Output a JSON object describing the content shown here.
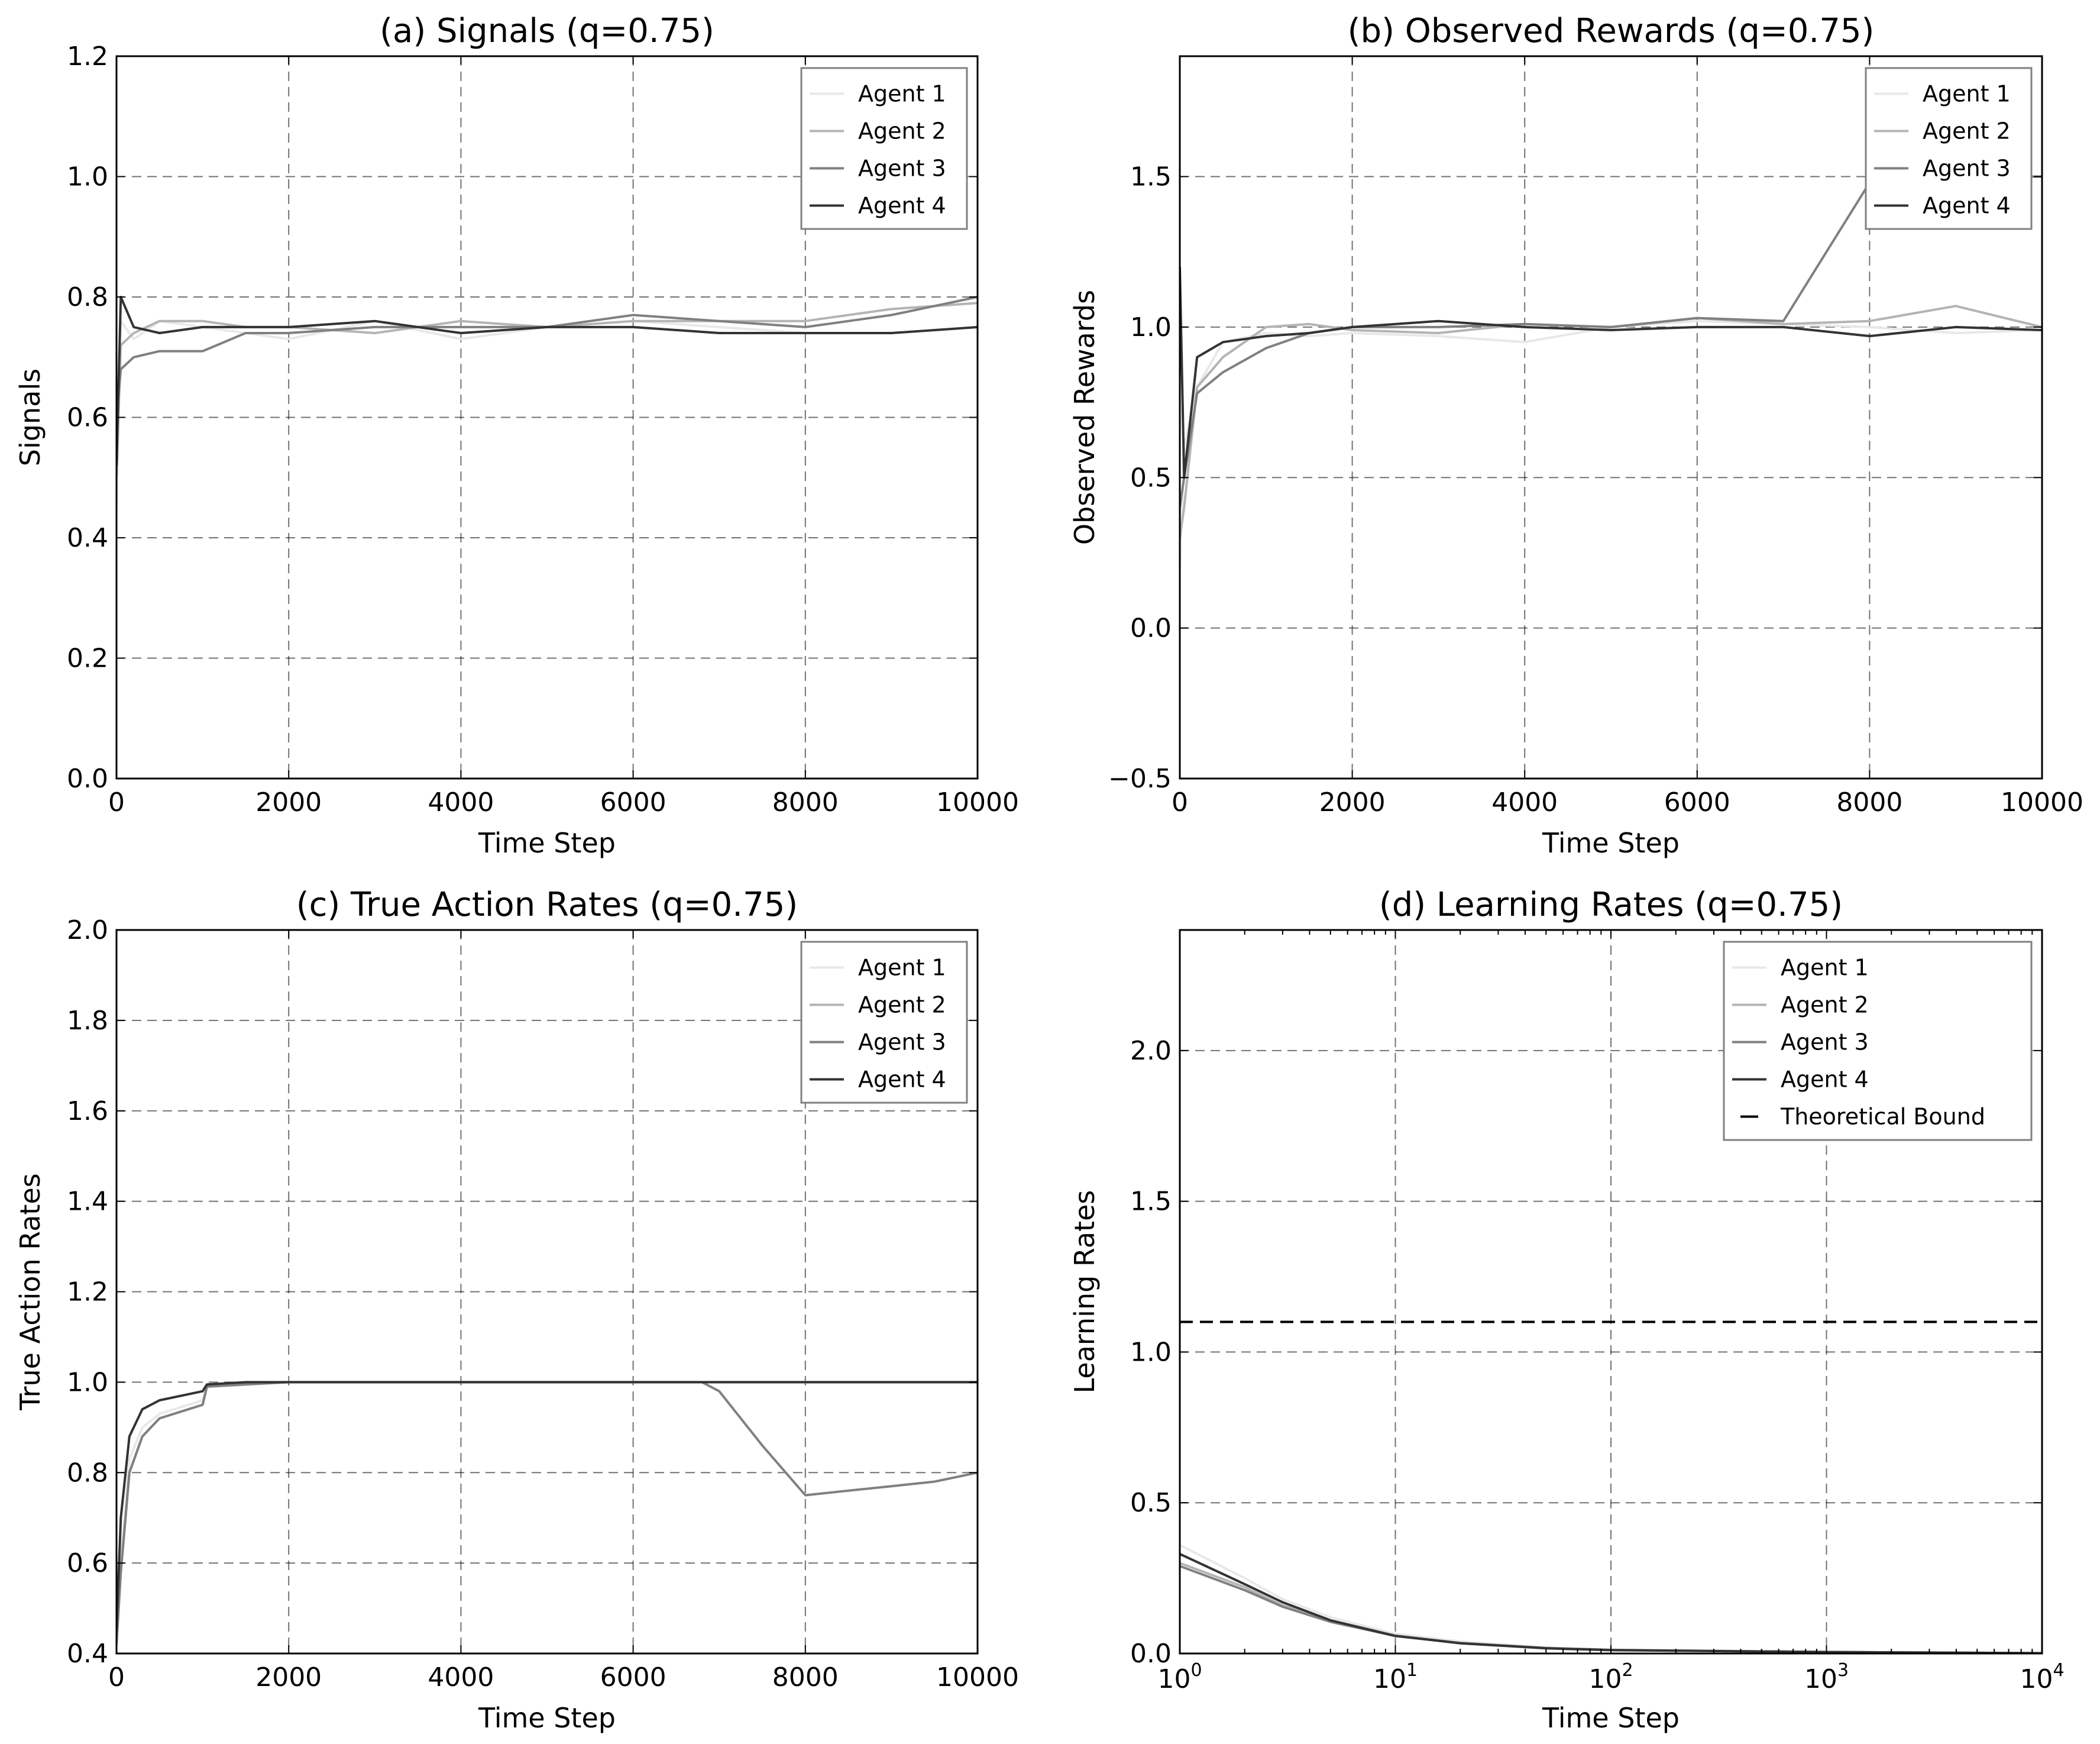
{
  "figure": {
    "series_names": [
      "Agent 1",
      "Agent 2",
      "Agent 3",
      "Agent 4"
    ],
    "series_colors": [
      "#e8e8e8",
      "#b4b4b4",
      "#808080",
      "#333333"
    ],
    "bound_color": "#000000",
    "grid": true,
    "grid_style": "dashed"
  },
  "chart_data": [
    {
      "id": "a",
      "type": "line",
      "title": "(a) Signals (q=0.75)",
      "xlabel": "Time Step",
      "ylabel": "Signals",
      "xlim": [
        0,
        10000
      ],
      "ylim": [
        0.0,
        1.2
      ],
      "xticks": [
        0,
        2000,
        4000,
        6000,
        8000,
        10000
      ],
      "xticklabels": [
        "0",
        "2000",
        "4000",
        "6000",
        "8000",
        "10000"
      ],
      "yticks": [
        0.0,
        0.2,
        0.4,
        0.6,
        0.8,
        1.0,
        1.2
      ],
      "yticklabels": [
        "0.0",
        "0.2",
        "0.4",
        "0.6",
        "0.8",
        "1.0",
        "1.2"
      ],
      "legend": "top-right",
      "series": [
        {
          "name": "Agent 1",
          "x": [
            0,
            50,
            200,
            500,
            1000,
            1500,
            2000,
            3000,
            4000,
            5000,
            6000,
            7000,
            8000,
            9000,
            10000
          ],
          "y": [
            0.45,
            0.76,
            0.73,
            0.76,
            0.75,
            0.74,
            0.73,
            0.76,
            0.73,
            0.75,
            0.76,
            0.75,
            0.74,
            0.74,
            0.75
          ]
        },
        {
          "name": "Agent 2",
          "x": [
            0,
            50,
            200,
            500,
            1000,
            1500,
            2000,
            3000,
            4000,
            5000,
            6000,
            7000,
            8000,
            9000,
            10000
          ],
          "y": [
            0.5,
            0.72,
            0.74,
            0.76,
            0.76,
            0.75,
            0.75,
            0.74,
            0.76,
            0.75,
            0.76,
            0.76,
            0.76,
            0.78,
            0.79
          ]
        },
        {
          "name": "Agent 3",
          "x": [
            0,
            50,
            200,
            500,
            1000,
            1500,
            2000,
            3000,
            4000,
            5000,
            6000,
            7000,
            8000,
            9000,
            10000
          ],
          "y": [
            0.6,
            0.68,
            0.7,
            0.71,
            0.71,
            0.74,
            0.74,
            0.75,
            0.75,
            0.75,
            0.77,
            0.76,
            0.75,
            0.77,
            0.8
          ]
        },
        {
          "name": "Agent 4",
          "x": [
            0,
            50,
            200,
            500,
            1000,
            1500,
            2000,
            3000,
            4000,
            5000,
            6000,
            7000,
            8000,
            9000,
            10000
          ],
          "y": [
            0.52,
            0.8,
            0.75,
            0.74,
            0.75,
            0.75,
            0.75,
            0.76,
            0.74,
            0.75,
            0.75,
            0.74,
            0.74,
            0.74,
            0.75
          ]
        }
      ]
    },
    {
      "id": "b",
      "type": "line",
      "title": "(b) Observed Rewards (q=0.75)",
      "xlabel": "Time Step",
      "ylabel": "Observed Rewards",
      "xlim": [
        0,
        10000
      ],
      "ylim": [
        -0.5,
        1.9
      ],
      "xticks": [
        0,
        2000,
        4000,
        6000,
        8000,
        10000
      ],
      "xticklabels": [
        "0",
        "2000",
        "4000",
        "6000",
        "8000",
        "10000"
      ],
      "yticks": [
        -0.5,
        0.0,
        0.5,
        1.0,
        1.5
      ],
      "yticklabels": [
        "−0.5",
        "0.0",
        "0.5",
        "1.0",
        "1.5"
      ],
      "legend": "top-right",
      "series": [
        {
          "name": "Agent 1",
          "x": [
            0,
            50,
            200,
            500,
            1000,
            1500,
            2000,
            3000,
            4000,
            5000,
            6000,
            7000,
            8000,
            9000,
            10000
          ],
          "y": [
            0.2,
            0.6,
            0.8,
            0.95,
            0.98,
            0.97,
            0.98,
            0.97,
            0.95,
            1.0,
            1.02,
            1.01,
            1.0,
            0.98,
            0.99
          ]
        },
        {
          "name": "Agent 2",
          "x": [
            0,
            50,
            200,
            500,
            1000,
            1500,
            2000,
            3000,
            4000,
            5000,
            6000,
            7000,
            8000,
            9000,
            10000
          ],
          "y": [
            0.3,
            0.4,
            0.8,
            0.9,
            1.0,
            1.01,
            0.99,
            0.98,
            1.01,
            1.0,
            1.03,
            1.01,
            1.02,
            1.07,
            1.0
          ]
        },
        {
          "name": "Agent 3",
          "x": [
            0,
            50,
            200,
            500,
            1000,
            1500,
            2000,
            3000,
            4000,
            5000,
            6000,
            7000,
            7500,
            8000,
            8500,
            9000,
            10000
          ],
          "y": [
            0.4,
            0.5,
            0.78,
            0.85,
            0.93,
            0.98,
            1.0,
            1.0,
            1.01,
            1.0,
            1.03,
            1.02,
            1.25,
            1.48,
            1.5,
            1.5,
            1.5
          ]
        },
        {
          "name": "Agent 4",
          "x": [
            0,
            50,
            200,
            500,
            1000,
            1500,
            2000,
            3000,
            4000,
            5000,
            6000,
            7000,
            8000,
            9000,
            10000
          ],
          "y": [
            1.2,
            0.5,
            0.9,
            0.95,
            0.97,
            0.98,
            1.0,
            1.02,
            1.0,
            0.99,
            1.0,
            1.0,
            0.97,
            1.0,
            0.99
          ]
        }
      ]
    },
    {
      "id": "c",
      "type": "line",
      "title": "(c) True Action Rates (q=0.75)",
      "xlabel": "Time Step",
      "ylabel": "True Action Rates",
      "xlim": [
        0,
        10000
      ],
      "ylim": [
        0.4,
        2.0
      ],
      "xticks": [
        0,
        2000,
        4000,
        6000,
        8000,
        10000
      ],
      "xticklabels": [
        "0",
        "2000",
        "4000",
        "6000",
        "8000",
        "10000"
      ],
      "yticks": [
        0.4,
        0.6,
        0.8,
        1.0,
        1.2,
        1.4,
        1.6,
        1.8,
        2.0
      ],
      "yticklabels": [
        "0.4",
        "0.6",
        "0.8",
        "1.0",
        "1.2",
        "1.4",
        "1.6",
        "1.8",
        "2.0"
      ],
      "legend": "top-right",
      "series": [
        {
          "name": "Agent 1",
          "x": [
            0,
            50,
            150,
            300,
            500,
            1000,
            1050,
            1500,
            2000,
            10000
          ],
          "y": [
            0.42,
            0.6,
            0.83,
            0.9,
            0.93,
            0.96,
            0.99,
            1.0,
            1.0,
            1.0
          ]
        },
        {
          "name": "Agent 2",
          "x": [
            0,
            50,
            150,
            300,
            500,
            1000,
            1050,
            1500,
            2000,
            10000
          ],
          "y": [
            0.42,
            0.58,
            0.8,
            0.88,
            0.92,
            0.95,
            0.99,
            0.995,
            1.0,
            1.0
          ]
        },
        {
          "name": "Agent 3",
          "x": [
            0,
            50,
            150,
            300,
            500,
            1000,
            1050,
            1500,
            2000,
            6800,
            7000,
            7500,
            8000,
            8500,
            9000,
            9500,
            10000
          ],
          "y": [
            0.42,
            0.58,
            0.8,
            0.88,
            0.92,
            0.95,
            0.99,
            0.995,
            1.0,
            1.0,
            0.98,
            0.86,
            0.75,
            0.76,
            0.77,
            0.78,
            0.8
          ]
        },
        {
          "name": "Agent 4",
          "x": [
            0,
            50,
            150,
            300,
            500,
            1000,
            1050,
            1500,
            2000,
            10000
          ],
          "y": [
            0.45,
            0.7,
            0.88,
            0.94,
            0.96,
            0.98,
            0.995,
            1.0,
            1.0,
            1.0
          ]
        }
      ]
    },
    {
      "id": "d",
      "type": "line",
      "title": "(d) Learning Rates (q=0.75)",
      "xlabel": "Time Step",
      "ylabel": "Learning Rates",
      "xscale": "log",
      "xlim": [
        1,
        10000
      ],
      "ylim": [
        0.0,
        2.4
      ],
      "xticks": [
        1,
        10,
        100,
        1000,
        10000
      ],
      "xticklabels": [
        {
          "base": "10",
          "exp": "0"
        },
        {
          "base": "10",
          "exp": "1"
        },
        {
          "base": "10",
          "exp": "2"
        },
        {
          "base": "10",
          "exp": "3"
        },
        {
          "base": "10",
          "exp": "4"
        }
      ],
      "yticks": [
        0.0,
        0.5,
        1.0,
        1.5,
        2.0
      ],
      "yticklabels": [
        "0.0",
        "0.5",
        "1.0",
        "1.5",
        "2.0"
      ],
      "legend": "top-right",
      "series": [
        {
          "name": "Agent 1",
          "x": [
            1,
            2,
            3,
            5,
            10,
            20,
            50,
            100,
            1000,
            10000
          ],
          "y": [
            0.36,
            0.25,
            0.18,
            0.12,
            0.065,
            0.04,
            0.02,
            0.012,
            0.005,
            0.001
          ]
        },
        {
          "name": "Agent 2",
          "x": [
            1,
            2,
            3,
            5,
            10,
            20,
            50,
            100,
            1000,
            10000
          ],
          "y": [
            0.3,
            0.22,
            0.16,
            0.11,
            0.06,
            0.035,
            0.018,
            0.012,
            0.005,
            0.001
          ]
        },
        {
          "name": "Agent 3",
          "x": [
            1,
            2,
            3,
            5,
            10,
            20,
            50,
            100,
            1000,
            10000
          ],
          "y": [
            0.29,
            0.21,
            0.155,
            0.105,
            0.058,
            0.035,
            0.018,
            0.012,
            0.005,
            0.001
          ]
        },
        {
          "name": "Agent 4",
          "x": [
            1,
            2,
            3,
            5,
            10,
            20,
            50,
            100,
            1000,
            10000
          ],
          "y": [
            0.33,
            0.23,
            0.17,
            0.11,
            0.058,
            0.034,
            0.017,
            0.011,
            0.005,
            0.001
          ]
        }
      ],
      "bound": {
        "name": "Theoretical Bound",
        "value": 1.1
      }
    }
  ]
}
